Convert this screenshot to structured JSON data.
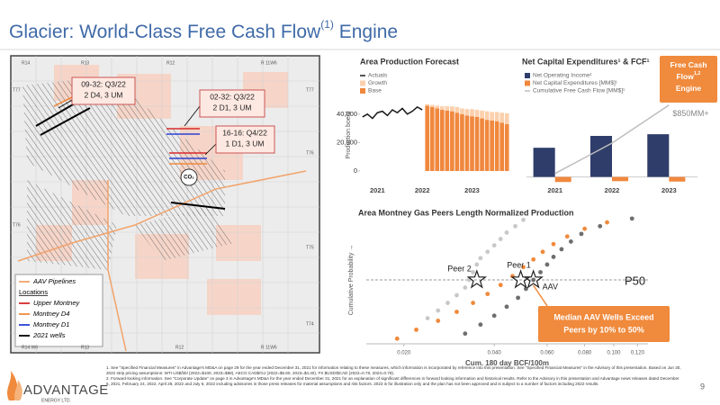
{
  "header": {
    "title": "Glacier: World-Class Free Cash Flow",
    "title_sup": "(1)",
    "title_end": " Engine"
  },
  "map": {
    "top_labels": [
      "R14",
      "R13",
      "R12",
      "R 11W6"
    ],
    "bottom_labels": [
      "R14 W6",
      "R13",
      "R12",
      "R 11W6"
    ],
    "left_labels": [
      "T77",
      "T76"
    ],
    "right_labels": [
      "T77",
      "T76",
      "T75",
      "T74"
    ],
    "callouts": [
      [
        "09-32: Q3/22",
        "2 D4, 3 UM"
      ],
      [
        "02-32: Q3/22",
        "2 D1, 3 UM"
      ],
      [
        "16-16: Q4/22",
        "1 D1, 3 UM"
      ]
    ],
    "facility": "CO₂",
    "legend": {
      "pipelines": "AAV Pipelines",
      "locations": "Locations",
      "items": [
        "Upper Montney",
        "Montney D4",
        "Montney D1",
        "2021 wells"
      ]
    }
  },
  "chart_data": [
    {
      "type": "combo",
      "title": "Area Production Forecast",
      "ylabel": "Production boe/d",
      "stacked": true,
      "categories": [
        null,
        null,
        null,
        "2021",
        null,
        null,
        null,
        null,
        null,
        null,
        null,
        null,
        "2022",
        null,
        null,
        null,
        null,
        null,
        null,
        null,
        null,
        null,
        "2023",
        null,
        null,
        null,
        null,
        null,
        null,
        null
      ],
      "ylim": [
        0,
        50000
      ],
      "yticks": [
        0,
        {
          "value": 20000,
          "label": "20,000"
        },
        {
          "value": 40000,
          "label": "40,000"
        }
      ],
      "series": [
        {
          "name": "Actuals",
          "kind": "line",
          "color": "#1a1a1a",
          "values": [
            38000,
            40000,
            37000,
            41000,
            42000,
            39000,
            43000,
            41000,
            44000,
            40000,
            42000,
            45000,
            43000,
            null,
            null,
            null,
            null,
            null,
            null,
            null,
            null,
            null,
            null,
            null,
            null,
            null,
            null,
            null,
            null,
            null
          ]
        },
        {
          "name": "Growth",
          "kind": "bar",
          "color": "#fbd0ad",
          "values": [
            null,
            null,
            null,
            null,
            null,
            null,
            null,
            null,
            null,
            null,
            null,
            null,
            null,
            1000,
            1500,
            2000,
            2500,
            3000,
            3500,
            4000,
            4000,
            4500,
            5000,
            5000,
            5500,
            6000,
            6000,
            6500,
            7000,
            7500
          ]
        },
        {
          "name": "Base",
          "kind": "bar",
          "color": "#f0883e",
          "values": [
            null,
            null,
            null,
            null,
            null,
            null,
            null,
            null,
            null,
            null,
            null,
            null,
            null,
            46000,
            45000,
            44000,
            43000,
            42500,
            42000,
            41000,
            40000,
            39000,
            38500,
            38000,
            37000,
            36000,
            35500,
            35000,
            34000,
            33000
          ]
        }
      ]
    },
    {
      "type": "combo",
      "title": "Net Capital Expenditures¹ & FCF¹",
      "stacked": false,
      "categories": [
        "2021",
        "2022",
        "2023"
      ],
      "ylim": [
        -100,
        900
      ],
      "callout": {
        "lines": [
          "Free Cash",
          "Flow",
          "Engine"
        ],
        "sup": "1,2"
      },
      "series": [
        {
          "name": "Net Operating Income¹",
          "kind": "bar",
          "color": "#2f3d6b",
          "values": [
            345,
            485,
            505
          ]
        },
        {
          "name": "Net Capital Expenditures [MM$]¹",
          "kind": "bar",
          "color": "#f0883e",
          "values": [
            -60,
            -50,
            -55
          ]
        },
        {
          "name": "Cumulative Free Cash Flow [MM$]¹",
          "kind": "line",
          "color": "#bdbdbd",
          "values": [
            40,
            400,
            850
          ],
          "value_labels": [
            null,
            null,
            "$850MM+"
          ]
        }
      ]
    },
    {
      "type": "scatter",
      "title": "Area Montney Gas Peers Length Normalized Production",
      "xlabel": "Cum. 180 day BCF/100m",
      "ylabel": "Cumulative Probability →",
      "xscale": "log",
      "xlim": [
        0.015,
        0.13
      ],
      "ylim": [
        0,
        1
      ],
      "xticks": [
        {
          "value": 0.02,
          "label": "0.020"
        },
        {
          "value": 0.04,
          "label": "0.040"
        },
        {
          "value": 0.06,
          "label": "0.060"
        },
        {
          "value": 0.08,
          "label": "0.080"
        },
        {
          "value": 0.1,
          "label": "0.100"
        },
        {
          "value": 0.12,
          "label": "0.120"
        }
      ],
      "reference_line": {
        "label": "P50",
        "value": 0.5
      },
      "markers": [
        {
          "label": "Peer 2",
          "x": 0.035,
          "y": 0.5
        },
        {
          "label": "Peer 1",
          "x": 0.049,
          "y": 0.5
        },
        {
          "label": "AAV",
          "x": 0.054,
          "y": 0.5
        }
      ],
      "callout": [
        "Median AAV Wells Exceed",
        "Peers by 10% to 50%"
      ],
      "series": [
        {
          "color": "#c8c8c8",
          "x": [
            0.024,
            0.026,
            0.028,
            0.03,
            0.032,
            0.033,
            0.034,
            0.035,
            0.036,
            0.038,
            0.04,
            0.042,
            0.044,
            0.047,
            0.05
          ],
          "values": [
            0.2,
            0.26,
            0.32,
            0.38,
            0.44,
            0.5,
            0.56,
            0.62,
            0.67,
            0.72,
            0.77,
            0.82,
            0.87,
            0.92,
            0.97
          ]
        },
        {
          "color": "#6e6e6e",
          "x": [
            0.032,
            0.036,
            0.04,
            0.044,
            0.048,
            0.051,
            0.054,
            0.057,
            0.06,
            0.063,
            0.067,
            0.072,
            0.078,
            0.09,
            0.115
          ],
          "values": [
            0.08,
            0.15,
            0.22,
            0.29,
            0.36,
            0.43,
            0.5,
            0.56,
            0.62,
            0.68,
            0.74,
            0.8,
            0.86,
            0.92,
            0.98
          ]
        },
        {
          "color": "#f08a3c",
          "x": [
            0.019,
            0.022,
            0.026,
            0.03,
            0.034,
            0.038,
            0.042,
            0.046,
            0.05,
            0.054,
            0.058,
            0.063,
            0.07,
            0.08,
            0.095
          ],
          "values": [
            0.04,
            0.11,
            0.18,
            0.25,
            0.32,
            0.39,
            0.46,
            0.53,
            0.6,
            0.66,
            0.72,
            0.78,
            0.84,
            0.9,
            0.95
          ]
        }
      ]
    }
  ],
  "footnotes": [
    "1. See \"Specified Financial Measures\" in Advantage's MD&A on page 29 for the year ended December 31, 2021 for information relating to these measures, which information is incorporated by reference into this presentation. See \"Specified Financial Measures\" in the Advisory of this presentation. Based on Jun 30, 2022 strip pricing assumptions: WTI US$/bbl (2022=$100, 2023=$88), AECO CAD$/GJ (2022=$5.80, 2023=$4.40), FX $USD/$CAD (2022=0.78, 2023=0.78).",
    "2. Forward-looking information. See \"Corporate Update\" on page 3 in Advantage's MD&A for the year ended December 31, 2021 for an explanation of significant differences in forward looking information and historical results. Refer to the Advisory in this presentation and Advantage news releases dated December 6, 2021, February 24, 2022, April 28, 2022 and July 6, 2022 including advisories in those press releases for material assumptions and risk factors. 2023 is for illustration only and the plan has not been approved and is subject to a number of factors including 2022 results."
  ],
  "page_number": "9",
  "logo": {
    "name": "ADVANTAGE",
    "sub": "ENERGY LTD."
  }
}
